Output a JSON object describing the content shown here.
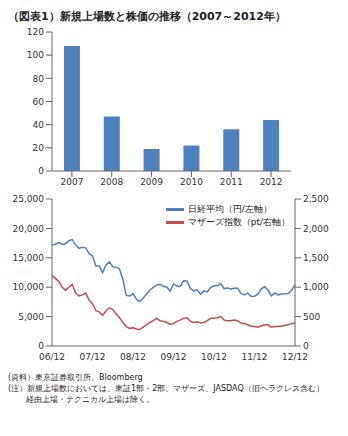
{
  "title": "（図表1）新規上場数と株価の推移（2007～2012年）",
  "chart_data": [
    {
      "type": "bar",
      "categories": [
        "2007",
        "2008",
        "2009",
        "2010",
        "2011",
        "2012"
      ],
      "values": [
        108,
        47,
        19,
        22,
        36,
        44
      ],
      "color": "#4f81bd",
      "ylim": [
        0,
        120
      ],
      "yticks": [
        0,
        20,
        40,
        60,
        80,
        100,
        120
      ],
      "grid": false
    },
    {
      "type": "line",
      "categories": [
        "06/12",
        null,
        null,
        null,
        null,
        null,
        null,
        null,
        null,
        null,
        null,
        null,
        "07/12",
        null,
        null,
        null,
        null,
        null,
        null,
        null,
        null,
        null,
        null,
        null,
        "08/12",
        null,
        null,
        null,
        null,
        null,
        null,
        null,
        null,
        null,
        null,
        null,
        "09/12",
        null,
        null,
        null,
        null,
        null,
        null,
        null,
        null,
        null,
        null,
        null,
        "10/12",
        null,
        null,
        null,
        null,
        null,
        null,
        null,
        null,
        null,
        null,
        null,
        "11/12",
        null,
        null,
        null,
        null,
        null,
        null,
        null,
        null,
        null,
        null,
        null,
        "12/12"
      ],
      "series": [
        {
          "name": "日経平均（円/左軸）",
          "color": "#4f81bd",
          "values": [
            17200,
            17300,
            17600,
            17300,
            17400,
            17900,
            18100,
            17200,
            16600,
            16800,
            16700,
            15700,
            15300,
            13600,
            13600,
            12500,
            13800,
            14300,
            13500,
            13400,
            13100,
            11300,
            8600,
            8500,
            8900,
            7990,
            7570,
            8110,
            8830,
            9520,
            9960,
            10360,
            10490,
            10130,
            10030,
            9350,
            10550,
            10200,
            10130,
            11090,
            11060,
            9770,
            9380,
            9540,
            8820,
            9370,
            9200,
            9940,
            10230,
            10240,
            10620,
            9760,
            9850,
            9690,
            9820,
            9830,
            8960,
            8700,
            8990,
            8430,
            8460,
            8800,
            9720,
            10080,
            9520,
            8540,
            9010,
            8700,
            8840,
            8870,
            8930,
            9450,
            10400
          ]
        },
        {
          "name": "マザーズ指数（pt/右軸）",
          "color": "#c0504d",
          "axis": "y2",
          "values": [
            1200,
            1150,
            1100,
            1000,
            950,
            1000,
            1050,
            900,
            850,
            870,
            900,
            780,
            720,
            600,
            580,
            520,
            600,
            650,
            620,
            550,
            480,
            400,
            330,
            300,
            310,
            290,
            280,
            320,
            360,
            400,
            430,
            470,
            430,
            420,
            400,
            370,
            380,
            420,
            440,
            470,
            480,
            420,
            400,
            410,
            390,
            400,
            430,
            470,
            470,
            480,
            500,
            440,
            430,
            430,
            440,
            430,
            390,
            380,
            360,
            340,
            330,
            320,
            340,
            360,
            360,
            320,
            330,
            330,
            340,
            350,
            360,
            380,
            390
          ]
        }
      ],
      "ylim": [
        0,
        25000
      ],
      "yticks": [
        0,
        {
          "value": 5000,
          "label": "5,000"
        },
        {
          "value": 10000,
          "label": "10,000"
        },
        {
          "value": 15000,
          "label": "15,000"
        },
        {
          "value": 20000,
          "label": "20,000"
        },
        {
          "value": 25000,
          "label": "25,000"
        }
      ],
      "y2lim": [
        0,
        2500
      ],
      "y2ticks": [
        0,
        500,
        {
          "value": 1000,
          "label": "1,000"
        },
        {
          "value": 1500,
          "label": "1,500"
        },
        {
          "value": 2000,
          "label": "2,000"
        },
        {
          "value": 2500,
          "label": "2,500"
        }
      ],
      "legend": "upper right",
      "grid": false
    }
  ],
  "notes": [
    "(資料）東京証券取引所、Bloomberg",
    "(注）新規上場数においては、東証1部・2部、マザーズ、JASDAQ（旧ヘラクレス含む）",
    "経由上場・テクニカル上場は除く。"
  ]
}
